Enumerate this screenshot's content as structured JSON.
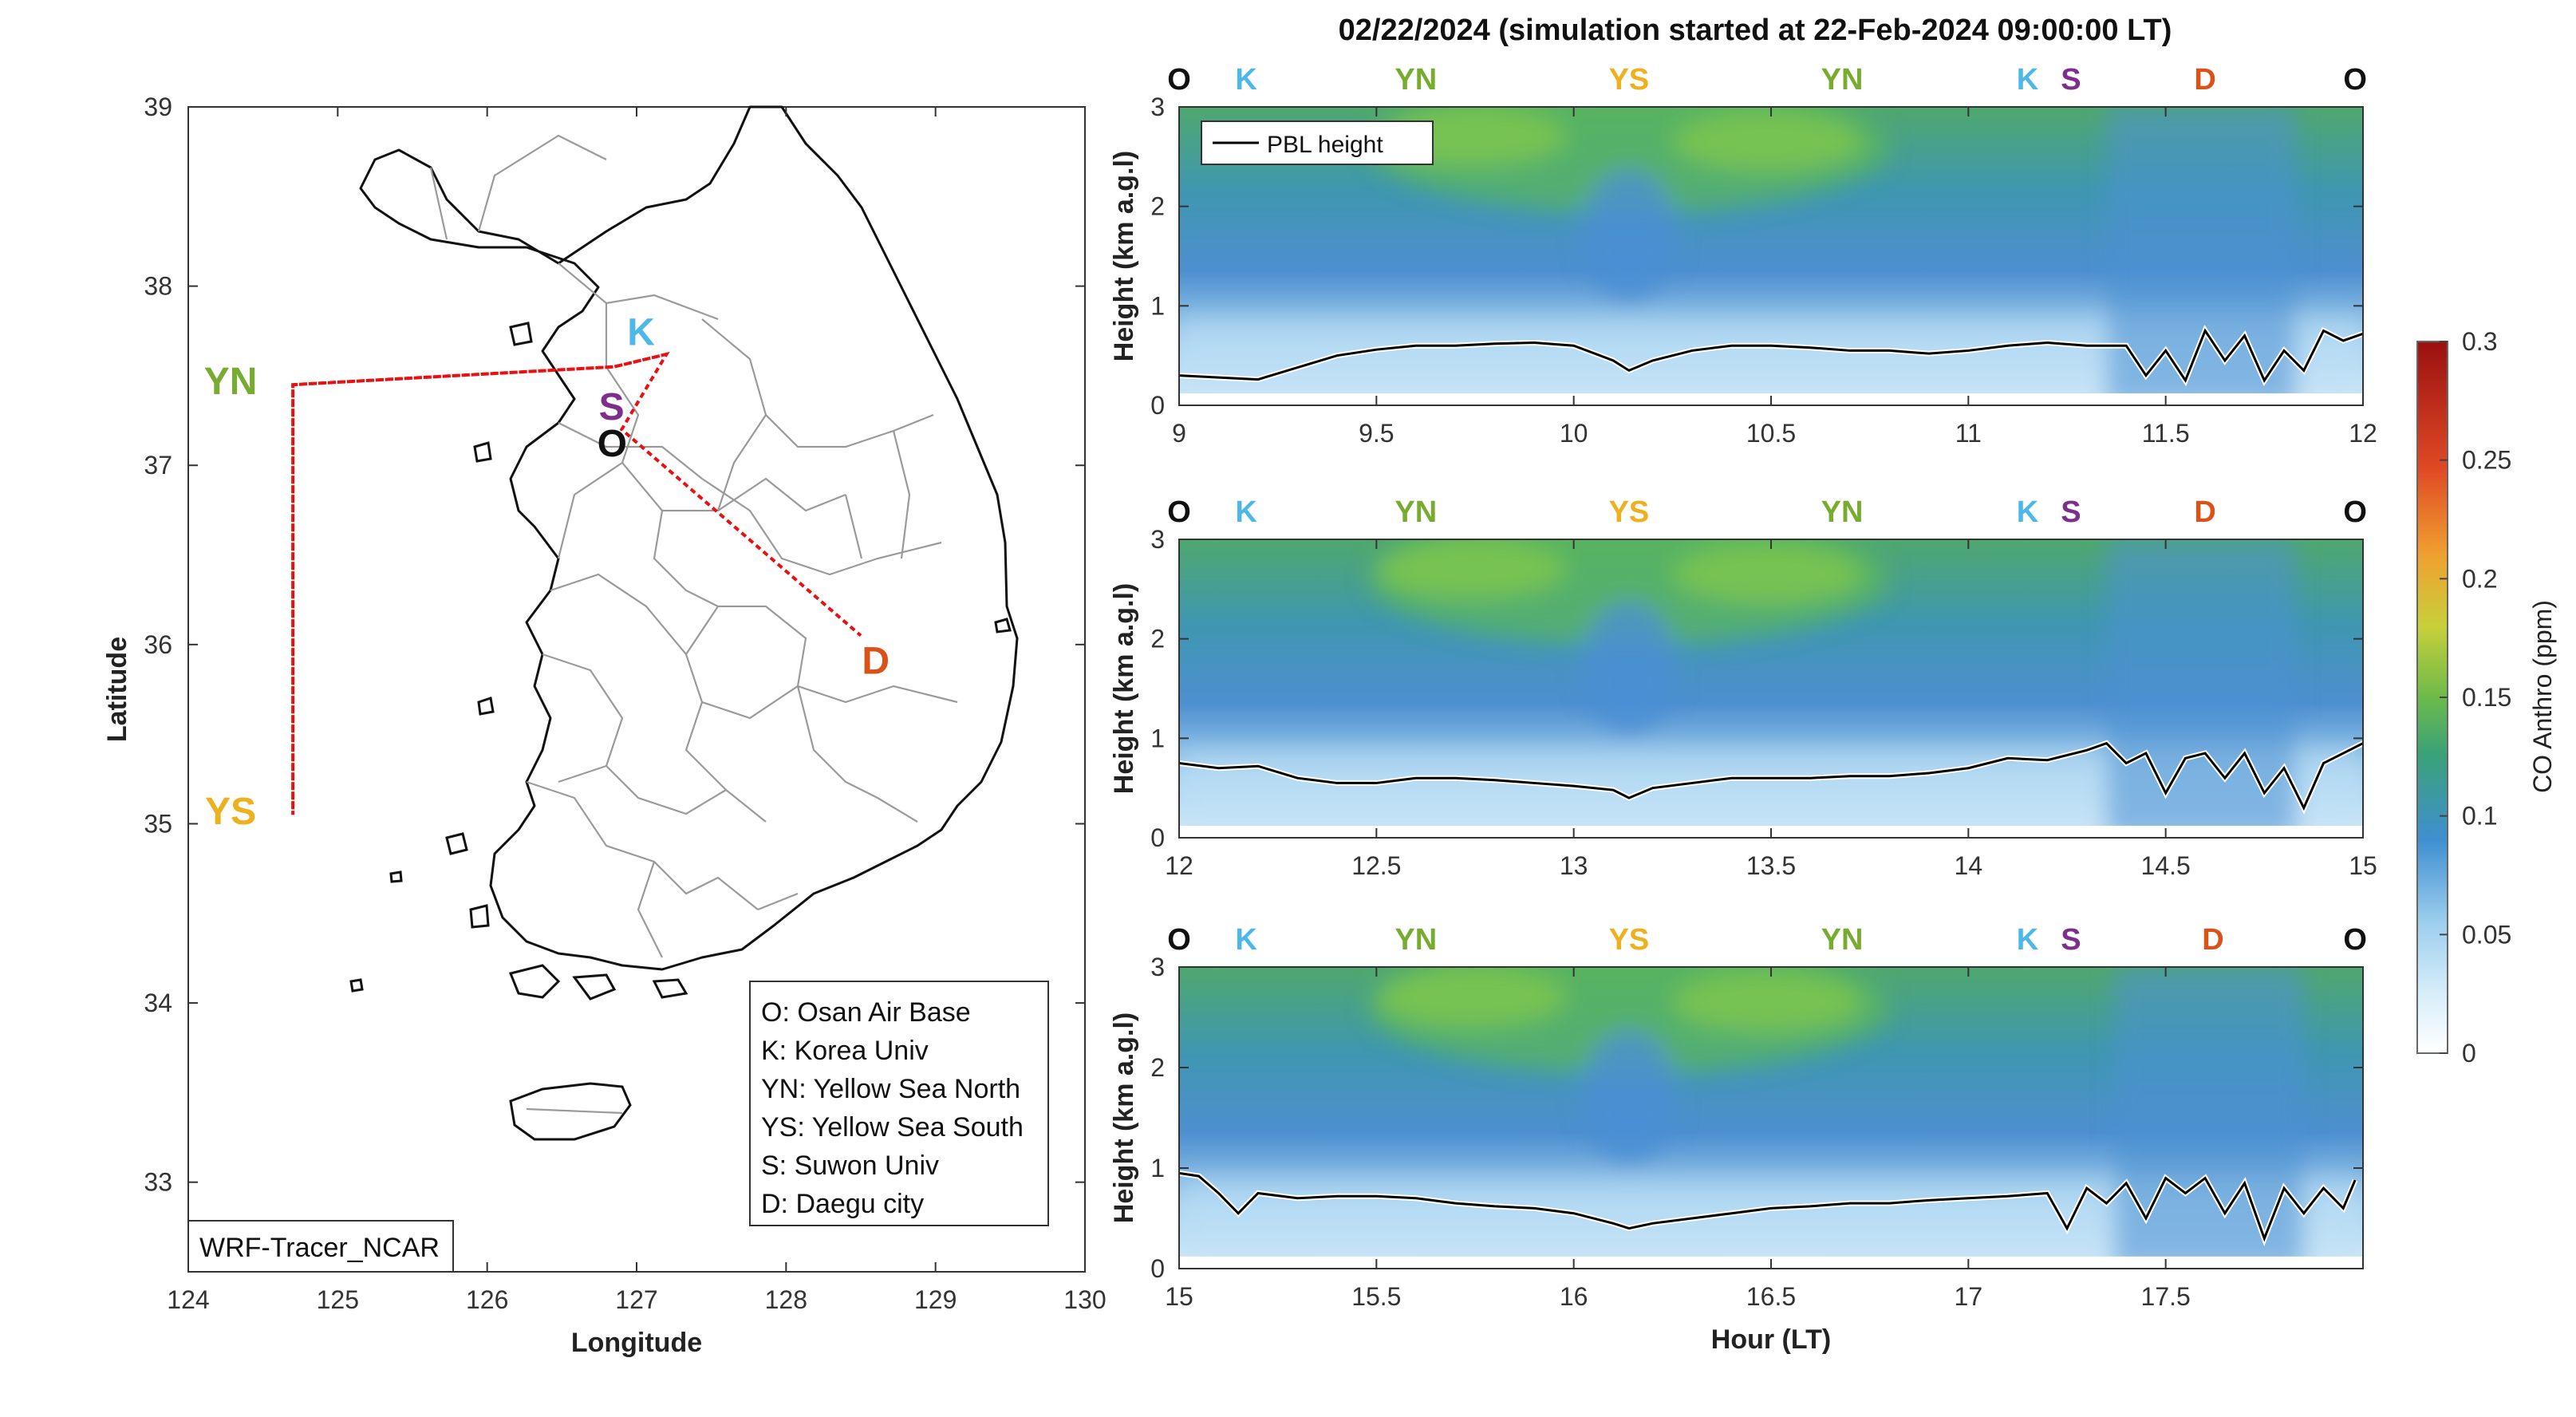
{
  "figure": {
    "title": "02/22/2024 (simulation started at 22-Feb-2024 09:00:00 LT)"
  },
  "colors": {
    "O": "#111111",
    "K": "#4db8e8",
    "YN": "#77ac30",
    "YS": "#edb120",
    "S": "#7e2f8e",
    "D": "#d95319",
    "track": "#e81010",
    "pbl": "#000000"
  },
  "chart_data": [
    {
      "type": "map",
      "xlabel": "Longitude",
      "ylabel": "Latitude",
      "xlim": [
        124,
        130
      ],
      "ylim": [
        32.5,
        39
      ],
      "xticks": [
        "124",
        "125",
        "126",
        "127",
        "128",
        "129",
        "130"
      ],
      "yticks": [
        "33",
        "34",
        "35",
        "36",
        "37",
        "38",
        "39"
      ],
      "model_label": "WRF-Tracer_NCAR",
      "sites": [
        {
          "code": "O",
          "lon": 126.9,
          "lat": 37.05
        },
        {
          "code": "K",
          "lon": 127.03,
          "lat": 37.59
        },
        {
          "code": "YN",
          "lon": 124.7,
          "lat": 37.45
        },
        {
          "code": "YS",
          "lon": 124.7,
          "lat": 35.05
        },
        {
          "code": "S",
          "lon": 126.95,
          "lat": 37.3
        },
        {
          "code": "D",
          "lon": 128.6,
          "lat": 35.9
        }
      ],
      "flight_track": [
        [
          127.2,
          37.62
        ],
        [
          126.85,
          37.55
        ],
        [
          124.7,
          37.45
        ],
        [
          124.7,
          35.05
        ],
        [
          124.7,
          37.45
        ],
        [
          126.85,
          37.55
        ],
        [
          127.2,
          37.62
        ],
        [
          126.9,
          37.2
        ],
        [
          128.5,
          36.05
        ]
      ],
      "legend": [
        "O: Osan Air Base",
        "K: Korea Univ",
        "YN: Yellow Sea North",
        "YS: Yellow Sea South",
        "S: Suwon Univ",
        "D: Daegu city"
      ]
    },
    {
      "type": "heatmap",
      "title": "02/22/2024 (simulation started at 22-Feb-2024 09:00:00 LT)",
      "ylabel": "Height (km a.g.l)",
      "xlim": [
        9,
        12
      ],
      "ylim": [
        0,
        3
      ],
      "xticks": [
        "9",
        "9.5",
        "10",
        "10.5",
        "11",
        "11.5",
        "12"
      ],
      "yticks": [
        "0",
        "1",
        "2",
        "3"
      ],
      "legend": [
        "PBL height"
      ],
      "site_labels": [
        {
          "code": "O",
          "x": 9.0
        },
        {
          "code": "K",
          "x": 9.17
        },
        {
          "code": "YN",
          "x": 9.6
        },
        {
          "code": "YS",
          "x": 10.14
        },
        {
          "code": "YN",
          "x": 10.68
        },
        {
          "code": "K",
          "x": 11.15
        },
        {
          "code": "S",
          "x": 11.26
        },
        {
          "code": "D",
          "x": 11.6
        },
        {
          "code": "O",
          "x": 11.98
        }
      ],
      "pbl_km": [
        [
          9.0,
          0.3
        ],
        [
          9.1,
          0.28
        ],
        [
          9.2,
          0.26
        ],
        [
          9.3,
          0.38
        ],
        [
          9.4,
          0.5
        ],
        [
          9.5,
          0.56
        ],
        [
          9.6,
          0.6
        ],
        [
          9.7,
          0.6
        ],
        [
          9.8,
          0.62
        ],
        [
          9.9,
          0.63
        ],
        [
          10.0,
          0.6
        ],
        [
          10.1,
          0.45
        ],
        [
          10.14,
          0.35
        ],
        [
          10.2,
          0.45
        ],
        [
          10.3,
          0.55
        ],
        [
          10.4,
          0.6
        ],
        [
          10.5,
          0.6
        ],
        [
          10.6,
          0.58
        ],
        [
          10.7,
          0.55
        ],
        [
          10.8,
          0.55
        ],
        [
          10.9,
          0.52
        ],
        [
          11.0,
          0.55
        ],
        [
          11.1,
          0.6
        ],
        [
          11.2,
          0.63
        ],
        [
          11.3,
          0.6
        ],
        [
          11.4,
          0.6
        ],
        [
          11.45,
          0.3
        ],
        [
          11.5,
          0.55
        ],
        [
          11.55,
          0.25
        ],
        [
          11.6,
          0.75
        ],
        [
          11.65,
          0.45
        ],
        [
          11.7,
          0.7
        ],
        [
          11.75,
          0.25
        ],
        [
          11.8,
          0.55
        ],
        [
          11.85,
          0.35
        ],
        [
          11.9,
          0.75
        ],
        [
          11.95,
          0.65
        ],
        [
          12.0,
          0.72
        ]
      ]
    },
    {
      "type": "heatmap",
      "ylabel": "Height (km a.g.l)",
      "xlim": [
        12,
        15
      ],
      "ylim": [
        0,
        3
      ],
      "xticks": [
        "12",
        "12.5",
        "13",
        "13.5",
        "14",
        "14.5",
        "15"
      ],
      "yticks": [
        "0",
        "1",
        "2",
        "3"
      ],
      "site_labels": [
        {
          "code": "O",
          "x": 12.0
        },
        {
          "code": "K",
          "x": 12.17
        },
        {
          "code": "YN",
          "x": 12.6
        },
        {
          "code": "YS",
          "x": 13.14
        },
        {
          "code": "YN",
          "x": 13.68
        },
        {
          "code": "K",
          "x": 14.15
        },
        {
          "code": "S",
          "x": 14.26
        },
        {
          "code": "D",
          "x": 14.6
        },
        {
          "code": "O",
          "x": 14.98
        }
      ],
      "pbl_km": [
        [
          12.0,
          0.75
        ],
        [
          12.1,
          0.7
        ],
        [
          12.2,
          0.72
        ],
        [
          12.3,
          0.6
        ],
        [
          12.4,
          0.55
        ],
        [
          12.5,
          0.55
        ],
        [
          12.6,
          0.6
        ],
        [
          12.7,
          0.6
        ],
        [
          12.8,
          0.58
        ],
        [
          12.9,
          0.55
        ],
        [
          13.0,
          0.52
        ],
        [
          13.1,
          0.48
        ],
        [
          13.14,
          0.4
        ],
        [
          13.2,
          0.5
        ],
        [
          13.3,
          0.55
        ],
        [
          13.4,
          0.6
        ],
        [
          13.5,
          0.6
        ],
        [
          13.6,
          0.6
        ],
        [
          13.7,
          0.62
        ],
        [
          13.8,
          0.62
        ],
        [
          13.9,
          0.65
        ],
        [
          14.0,
          0.7
        ],
        [
          14.1,
          0.8
        ],
        [
          14.2,
          0.78
        ],
        [
          14.3,
          0.88
        ],
        [
          14.35,
          0.95
        ],
        [
          14.4,
          0.75
        ],
        [
          14.45,
          0.85
        ],
        [
          14.5,
          0.45
        ],
        [
          14.55,
          0.8
        ],
        [
          14.6,
          0.85
        ],
        [
          14.65,
          0.6
        ],
        [
          14.7,
          0.85
        ],
        [
          14.75,
          0.45
        ],
        [
          14.8,
          0.7
        ],
        [
          14.85,
          0.3
        ],
        [
          14.9,
          0.75
        ],
        [
          14.95,
          0.85
        ],
        [
          15.0,
          0.95
        ]
      ]
    },
    {
      "type": "heatmap",
      "xlabel": "Hour (LT)",
      "ylabel": "Height (km a.g.l)",
      "xlim": [
        15,
        18
      ],
      "ylim": [
        0,
        3
      ],
      "xticks": [
        "15",
        "15.5",
        "16",
        "16.5",
        "17",
        "17.5"
      ],
      "yticks": [
        "0",
        "1",
        "2",
        "3"
      ],
      "site_labels": [
        {
          "code": "O",
          "x": 15.0
        },
        {
          "code": "K",
          "x": 15.17
        },
        {
          "code": "YN",
          "x": 15.6
        },
        {
          "code": "YS",
          "x": 16.14
        },
        {
          "code": "YN",
          "x": 16.68
        },
        {
          "code": "K",
          "x": 17.15
        },
        {
          "code": "S",
          "x": 17.26
        },
        {
          "code": "D",
          "x": 17.62
        },
        {
          "code": "O",
          "x": 17.98
        }
      ],
      "pbl_km": [
        [
          15.0,
          0.95
        ],
        [
          15.05,
          0.92
        ],
        [
          15.1,
          0.75
        ],
        [
          15.15,
          0.55
        ],
        [
          15.2,
          0.75
        ],
        [
          15.3,
          0.7
        ],
        [
          15.4,
          0.72
        ],
        [
          15.5,
          0.72
        ],
        [
          15.6,
          0.7
        ],
        [
          15.7,
          0.65
        ],
        [
          15.8,
          0.62
        ],
        [
          15.9,
          0.6
        ],
        [
          16.0,
          0.55
        ],
        [
          16.1,
          0.45
        ],
        [
          16.14,
          0.4
        ],
        [
          16.2,
          0.45
        ],
        [
          16.3,
          0.5
        ],
        [
          16.4,
          0.55
        ],
        [
          16.5,
          0.6
        ],
        [
          16.6,
          0.62
        ],
        [
          16.7,
          0.65
        ],
        [
          16.8,
          0.65
        ],
        [
          16.9,
          0.68
        ],
        [
          17.0,
          0.7
        ],
        [
          17.1,
          0.72
        ],
        [
          17.2,
          0.75
        ],
        [
          17.25,
          0.4
        ],
        [
          17.3,
          0.8
        ],
        [
          17.35,
          0.65
        ],
        [
          17.4,
          0.85
        ],
        [
          17.45,
          0.5
        ],
        [
          17.5,
          0.9
        ],
        [
          17.55,
          0.75
        ],
        [
          17.6,
          0.9
        ],
        [
          17.65,
          0.55
        ],
        [
          17.7,
          0.85
        ],
        [
          17.75,
          0.3
        ],
        [
          17.8,
          0.8
        ],
        [
          17.85,
          0.55
        ],
        [
          17.9,
          0.8
        ],
        [
          17.95,
          0.6
        ],
        [
          17.98,
          0.88
        ]
      ]
    },
    {
      "type": "colorbar",
      "label": "CO Anthro (ppm)",
      "range": [
        0,
        0.3
      ],
      "ticks": [
        "0",
        "0.05",
        "0.1",
        "0.15",
        "0.2",
        "0.25",
        "0.3"
      ]
    }
  ]
}
